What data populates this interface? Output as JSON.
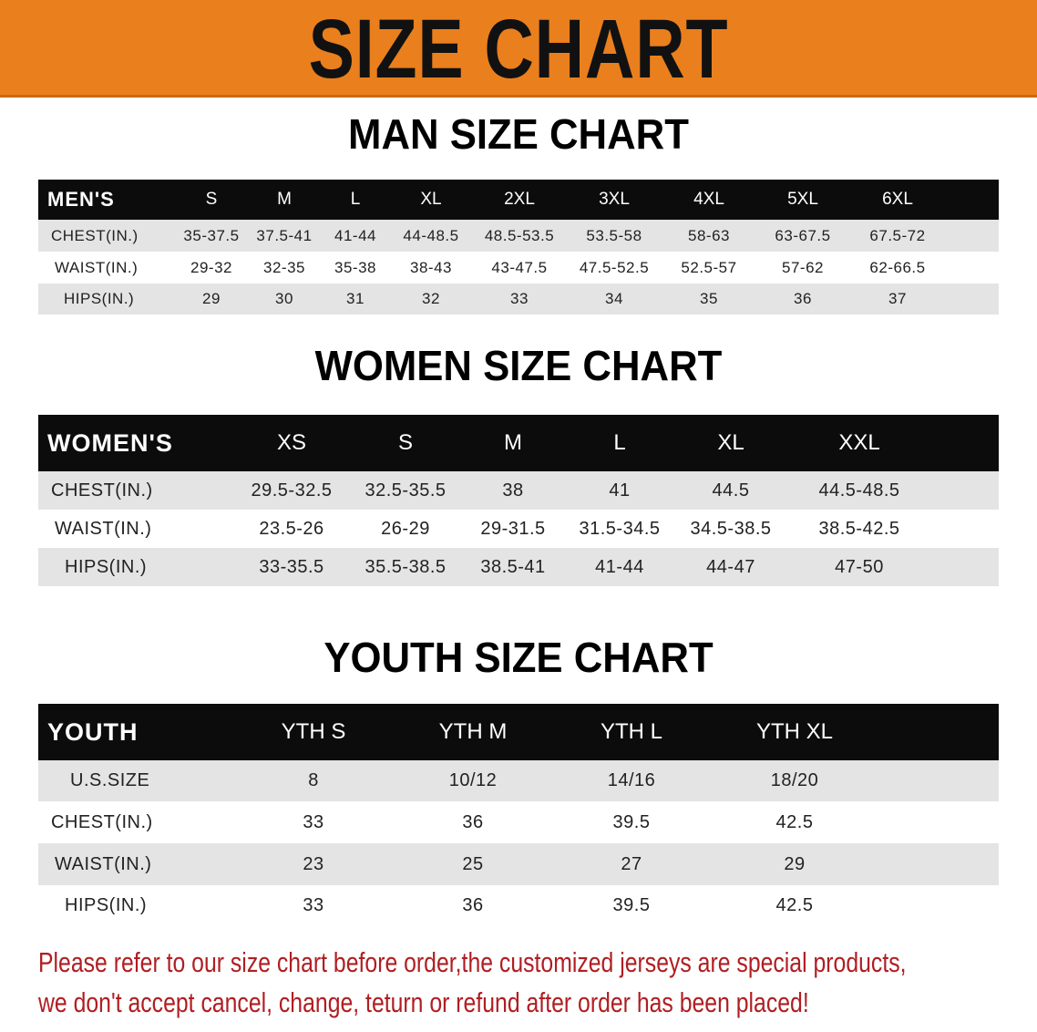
{
  "banner": {
    "title": "SIZE CHART",
    "color": "#ea7f1d"
  },
  "men": {
    "title": "MAN SIZE CHART",
    "header": [
      "MEN'S",
      "S",
      "M",
      "L",
      "XL",
      "2XL",
      "3XL",
      "4XL",
      "5XL",
      "6XL"
    ],
    "rows": [
      [
        "CHEST(IN.)",
        "35-37.5",
        "37.5-41",
        "41-44",
        "44-48.5",
        "48.5-53.5",
        "53.5-58",
        "58-63",
        "63-67.5",
        "67.5-72"
      ],
      [
        "WAIST(IN.)",
        "29-32",
        "32-35",
        "35-38",
        "38-43",
        "43-47.5",
        "47.5-52.5",
        "52.5-57",
        "57-62",
        "62-66.5"
      ],
      [
        "HIPS(IN.)",
        "29",
        "30",
        "31",
        "32",
        "33",
        "34",
        "35",
        "36",
        "37"
      ]
    ]
  },
  "women": {
    "title": "WOMEN SIZE CHART",
    "header": [
      "WOMEN'S",
      "XS",
      "S",
      "M",
      "L",
      "XL",
      "XXL"
    ],
    "rows": [
      [
        "CHEST(IN.)",
        "29.5-32.5",
        "32.5-35.5",
        "38",
        "41",
        "44.5",
        "44.5-48.5"
      ],
      [
        "WAIST(IN.)",
        "23.5-26",
        "26-29",
        "29-31.5",
        "31.5-34.5",
        "34.5-38.5",
        "38.5-42.5"
      ],
      [
        "HIPS(IN.)",
        "33-35.5",
        "35.5-38.5",
        "38.5-41",
        "41-44",
        "44-47",
        "47-50"
      ]
    ]
  },
  "youth": {
    "title": "YOUTH SIZE CHART",
    "header": [
      "YOUTH",
      "YTH S",
      "YTH M",
      "YTH L",
      "YTH XL"
    ],
    "rows": [
      [
        "U.S.SIZE",
        "8",
        "10/12",
        "14/16",
        "18/20"
      ],
      [
        "CHEST(IN.)",
        "33",
        "36",
        "39.5",
        "42.5"
      ],
      [
        "WAIST(IN.)",
        "23",
        "25",
        "27",
        "29"
      ],
      [
        "HIPS(IN.)",
        "33",
        "36",
        "39.5",
        "42.5"
      ]
    ]
  },
  "footer": {
    "line1": "Please refer to our size chart before order,the customized jerseys are special products,",
    "line2": "we don't accept cancel, change, teturn or refund after order has been placed!",
    "color": "#b01e22"
  }
}
